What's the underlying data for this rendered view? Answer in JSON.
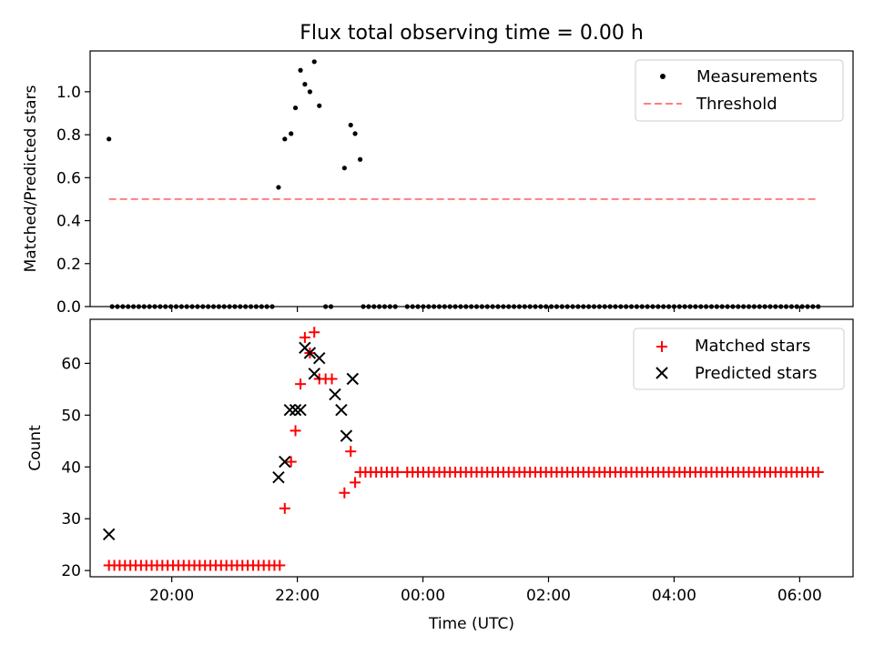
{
  "title": "Flux total observing time = 0.00 h",
  "chart_data": [
    {
      "type": "scatter",
      "ylabel": "Matched/Predicted stars",
      "xlabel": "",
      "xlim_hours": [
        18.7,
        30.85
      ],
      "ylim": [
        0,
        1.19
      ],
      "yticks": [
        0.0,
        0.2,
        0.4,
        0.6,
        0.8,
        1.0
      ],
      "ytick_labels": [
        "0.0",
        "0.2",
        "0.4",
        "0.6",
        "0.8",
        "1.0"
      ],
      "legend": {
        "position": "top-right",
        "entries": [
          "Measurements",
          "Threshold"
        ]
      },
      "threshold": {
        "name": "Threshold",
        "value": 0.5,
        "x_start": 19.0,
        "x_end": 30.25,
        "color": "#ff7f7f"
      },
      "measurements": {
        "name": "Measurements",
        "color": "#000000",
        "points": [
          [
            19.0,
            0.78
          ],
          [
            21.7,
            0.555
          ],
          [
            21.8,
            0.78
          ],
          [
            21.9,
            0.805
          ],
          [
            21.97,
            0.925
          ],
          [
            22.05,
            1.1
          ],
          [
            22.12,
            1.035
          ],
          [
            22.2,
            1.0
          ],
          [
            22.27,
            1.14
          ],
          [
            22.35,
            0.935
          ],
          [
            22.75,
            0.645
          ],
          [
            22.85,
            0.845
          ],
          [
            22.92,
            0.805
          ],
          [
            23.0,
            0.685
          ]
        ],
        "zero_ranges": [
          [
            19.05,
            21.65
          ],
          [
            22.45,
            22.55
          ],
          [
            23.05,
            23.6
          ],
          [
            23.75,
            30.3
          ]
        ],
        "zero_step": 0.085
      }
    },
    {
      "type": "scatter",
      "ylabel": "Count",
      "xlabel": "Time (UTC)",
      "xlim_hours": [
        18.7,
        30.85
      ],
      "ylim": [
        18.8,
        68.5
      ],
      "yticks": [
        20,
        30,
        40,
        50,
        60
      ],
      "ytick_labels": [
        "20",
        "30",
        "40",
        "50",
        "60"
      ],
      "xticks_hours": [
        20,
        22,
        24,
        26,
        28,
        30
      ],
      "xtick_labels": [
        "20:00",
        "22:00",
        "00:00",
        "02:00",
        "04:00",
        "06:00"
      ],
      "legend": {
        "position": "top-right",
        "entries": [
          "Matched stars",
          "Predicted stars"
        ]
      },
      "matched_stars": {
        "name": "Matched stars",
        "color": "#ff0000",
        "points": [
          [
            21.8,
            32
          ],
          [
            21.9,
            41
          ],
          [
            21.97,
            47
          ],
          [
            22.05,
            56
          ],
          [
            22.12,
            65
          ],
          [
            22.2,
            62
          ],
          [
            22.27,
            66
          ],
          [
            22.35,
            57
          ],
          [
            22.45,
            57
          ],
          [
            22.55,
            57
          ],
          [
            22.75,
            35
          ],
          [
            22.85,
            43
          ],
          [
            22.92,
            37
          ]
        ],
        "flat_segments": [
          {
            "from": 19.0,
            "to": 21.72,
            "value": 21
          },
          {
            "from": 23.0,
            "to": 23.6,
            "value": 39
          },
          {
            "from": 23.75,
            "to": 30.3,
            "value": 39
          }
        ],
        "flat_step": 0.085
      },
      "predicted_stars": {
        "name": "Predicted stars",
        "color": "#000000",
        "points": [
          [
            19.0,
            27
          ],
          [
            21.7,
            38
          ],
          [
            21.8,
            41
          ],
          [
            21.88,
            51
          ],
          [
            21.97,
            51
          ],
          [
            22.05,
            51
          ],
          [
            22.12,
            63
          ],
          [
            22.2,
            62
          ],
          [
            22.27,
            58
          ],
          [
            22.35,
            61
          ],
          [
            22.6,
            54
          ],
          [
            22.7,
            51
          ],
          [
            22.78,
            46
          ],
          [
            22.88,
            57
          ]
        ]
      }
    }
  ]
}
